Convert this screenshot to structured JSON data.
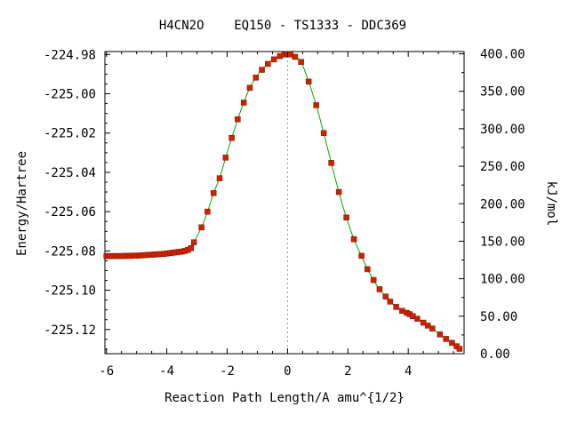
{
  "chart_data": {
    "type": "line",
    "title": "H4CN2O    EQ150 - TS1333 - DDC369",
    "xlabel": "Reaction Path Length/A amu^{1/2}",
    "ylabel": "Energy/Hartree",
    "y2label": "kJ/mol",
    "xlim": [
      -6.05,
      5.85
    ],
    "ylim": [
      -225.1323,
      -224.9785
    ],
    "y2lim": [
      0,
      403
    ],
    "x_ticks": [
      -6,
      -4,
      -2,
      0,
      2,
      4
    ],
    "x_tick_labels": [
      "-6",
      "-4",
      "-2",
      "0",
      "2",
      "4"
    ],
    "y_ticks": [
      -224.98,
      -225.0,
      -225.02,
      -225.04,
      -225.06,
      -225.08,
      -225.1,
      -225.12
    ],
    "y_tick_labels": [
      "-224.98",
      "-225.00",
      "-225.02",
      "-225.04",
      "-225.06",
      "-225.08",
      "-225.10",
      "-225.12"
    ],
    "y2_ticks": [
      400,
      350,
      300,
      250,
      200,
      150,
      100,
      50,
      0
    ],
    "y2_tick_labels": [
      "400.00",
      "350.00",
      "300.00",
      "250.00",
      "200.00",
      "150.00",
      "100.00",
      "50.00",
      "0.00"
    ],
    "grid": false,
    "ts_marker_x": 0,
    "colors": {
      "curve": "#00aa00",
      "points": "#cc2200",
      "ts_line": "#999999",
      "axes": "#000000"
    },
    "series": [
      {
        "x": [
          -6.0,
          -5.9,
          -5.8,
          -5.7,
          -5.6,
          -5.5,
          -5.4,
          -5.3,
          -5.2,
          -5.1,
          -5.0,
          -4.9,
          -4.8,
          -4.7,
          -4.6,
          -4.5,
          -4.4,
          -4.3,
          -4.2,
          -4.1,
          -4.0,
          -3.9,
          -3.8,
          -3.7,
          -3.6,
          -3.5,
          -3.4,
          -3.3,
          -3.2,
          -3.1,
          -2.85,
          -2.65,
          -2.45,
          -2.25,
          -2.05,
          -1.85,
          -1.65,
          -1.45,
          -1.25,
          -1.05,
          -0.85,
          -0.65,
          -0.45,
          -0.25,
          -0.1,
          0.0,
          0.1,
          0.25,
          0.45,
          0.7,
          0.95,
          1.2,
          1.45,
          1.7,
          1.95,
          2.2,
          2.45,
          2.65,
          2.85,
          3.05,
          3.25,
          3.4,
          3.6,
          3.8,
          3.95,
          4.05,
          4.15,
          4.3,
          4.5,
          4.65,
          4.8,
          5.05,
          5.25,
          5.45,
          5.6,
          5.7
        ],
        "y": [
          -225.0826,
          -225.0826,
          -225.0826,
          -225.0826,
          -225.0826,
          -225.0826,
          -225.0825,
          -225.0825,
          -225.0825,
          -225.0824,
          -225.0824,
          -225.0823,
          -225.0822,
          -225.0821,
          -225.082,
          -225.0819,
          -225.0818,
          -225.0817,
          -225.0816,
          -225.0815,
          -225.0813,
          -225.0811,
          -225.0809,
          -225.0807,
          -225.0805,
          -225.0803,
          -225.08,
          -225.0795,
          -225.0786,
          -225.0756,
          -225.068,
          -225.06,
          -225.0505,
          -225.043,
          -225.0325,
          -225.0225,
          -225.013,
          -225.0045,
          -224.997,
          -224.9918,
          -224.9878,
          -224.9848,
          -224.9825,
          -224.9808,
          -224.98,
          -224.9798,
          -224.98,
          -224.9812,
          -224.9838,
          -224.9938,
          -225.0058,
          -225.02,
          -225.0352,
          -225.05,
          -225.063,
          -225.074,
          -225.0825,
          -225.0893,
          -225.0948,
          -225.0995,
          -225.1032,
          -225.1058,
          -225.1085,
          -225.1105,
          -225.1115,
          -225.1122,
          -225.1132,
          -225.1145,
          -225.1165,
          -225.118,
          -225.1195,
          -225.1225,
          -225.1248,
          -225.1268,
          -225.1285,
          -225.1298
        ]
      }
    ]
  }
}
